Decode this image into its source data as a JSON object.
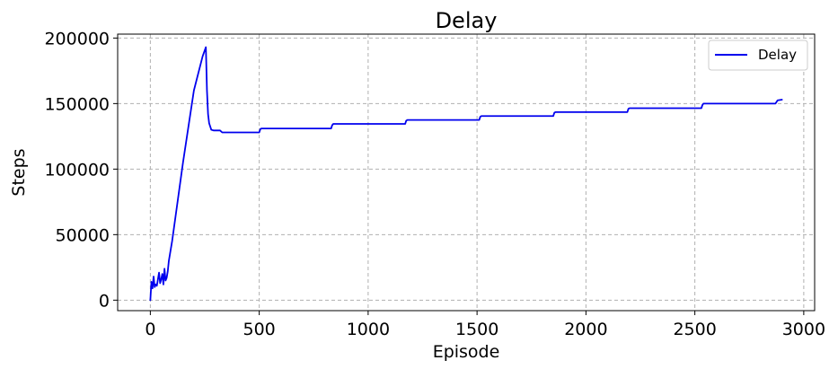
{
  "chart_data": {
    "type": "line",
    "title": "Delay",
    "xlabel": "Episode",
    "ylabel": "Steps",
    "xlim": [
      -150,
      3050
    ],
    "ylim": [
      -8000,
      203000
    ],
    "xticks": [
      0,
      500,
      1000,
      1500,
      2000,
      2500,
      3000
    ],
    "xtick_labels": [
      "0",
      "500",
      "1000",
      "1500",
      "2000",
      "2500",
      "3000"
    ],
    "yticks": [
      0,
      50000,
      100000,
      150000,
      200000
    ],
    "ytick_labels": [
      "0",
      "50000",
      "100000",
      "150000",
      "200000"
    ],
    "grid": true,
    "legend_position": "upper right",
    "series": [
      {
        "name": "Delay",
        "color": "#0000ee",
        "x": [
          0,
          5,
          10,
          15,
          20,
          25,
          30,
          40,
          45,
          50,
          55,
          60,
          65,
          70,
          75,
          80,
          85,
          90,
          100,
          150,
          200,
          240,
          255,
          260,
          265,
          270,
          280,
          290,
          320,
          330,
          500,
          505,
          510,
          520,
          830,
          835,
          840,
          860,
          1170,
          1175,
          1180,
          1200,
          1510,
          1515,
          1520,
          1540,
          1850,
          1855,
          1860,
          1880,
          2190,
          2195,
          2200,
          2220,
          2530,
          2535,
          2540,
          2560,
          2870,
          2880,
          2900
        ],
        "y": [
          0,
          14000,
          9000,
          18000,
          10000,
          12000,
          11000,
          21000,
          13000,
          16000,
          20000,
          12000,
          24000,
          15000,
          17000,
          22000,
          30000,
          35000,
          45000,
          105000,
          160000,
          186000,
          193000,
          160000,
          142000,
          135000,
          130000,
          129500,
          129500,
          128000,
          128000,
          130500,
          131000,
          131000,
          131000,
          133500,
          134500,
          134500,
          134500,
          137000,
          137500,
          137500,
          137500,
          140000,
          140500,
          140500,
          140500,
          143000,
          143500,
          143500,
          143500,
          146000,
          146500,
          146500,
          146500,
          149000,
          150000,
          150000,
          150000,
          152500,
          153000
        ]
      }
    ]
  }
}
